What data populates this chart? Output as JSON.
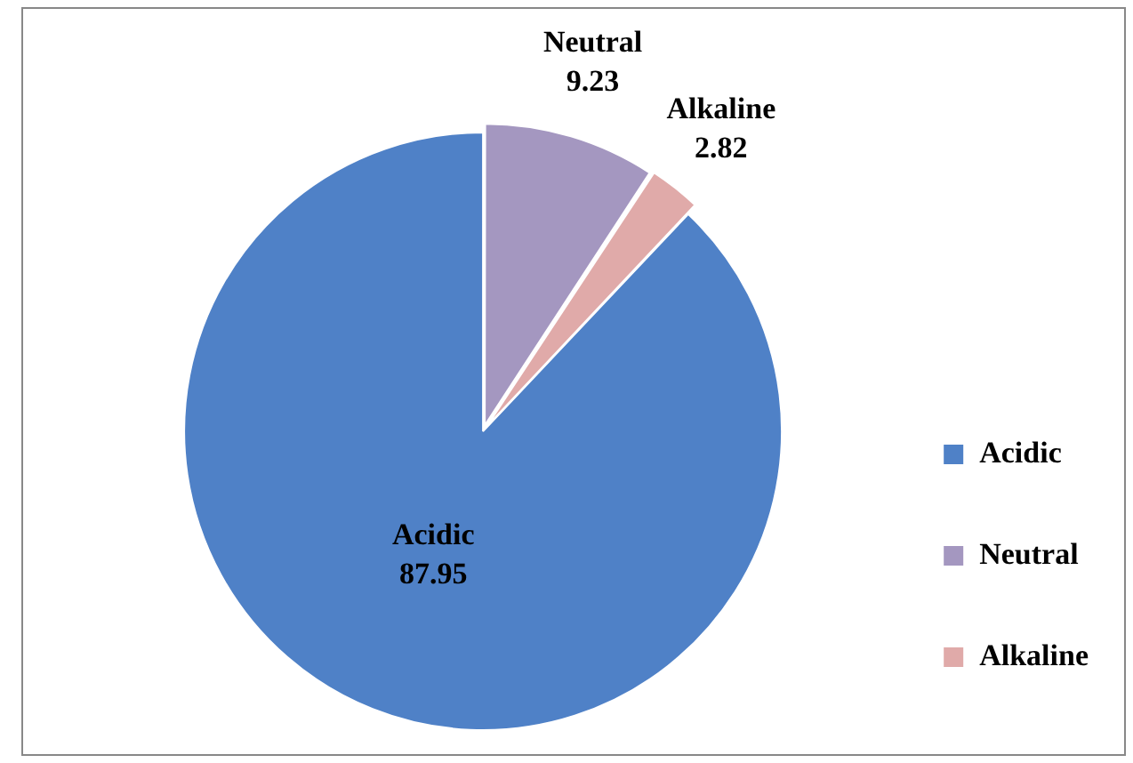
{
  "chart_data": {
    "type": "pie",
    "categories": [
      "Acidic",
      "Neutral",
      "Alkaline"
    ],
    "values": [
      87.95,
      9.23,
      2.82
    ],
    "colors": [
      "#4f81c7",
      "#a497c0",
      "#e0aaa9"
    ],
    "data_labels": true,
    "legend": "right"
  }
}
